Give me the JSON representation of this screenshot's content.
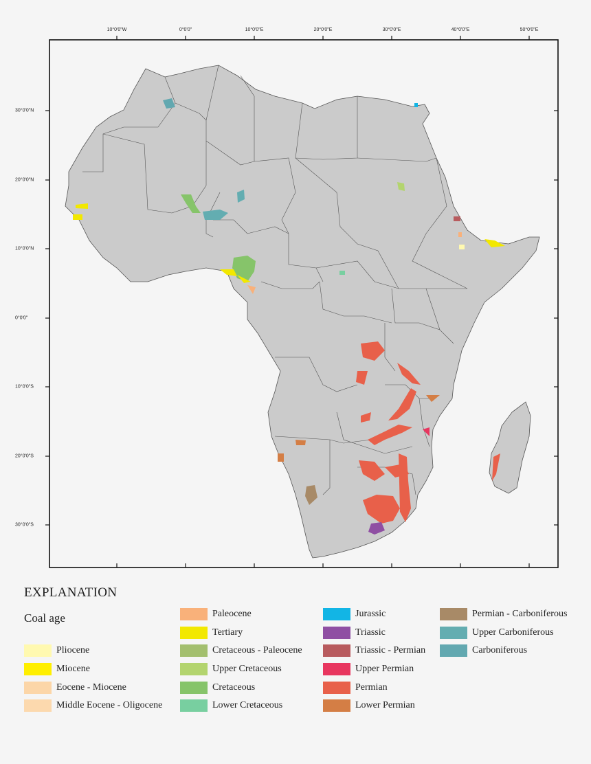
{
  "map": {
    "top_ticks": [
      "10°0'0\"W",
      "0°0'0\"",
      "10°0'0\"E",
      "20°0'0\"E",
      "30°0'0\"E",
      "40°0'0\"E",
      "50°0'0\"E"
    ],
    "left_ticks": [
      "30°0'0\"N",
      "20°0'0\"N",
      "10°0'0\"N",
      "0°0'0\"",
      "10°0'0\"S",
      "20°0'0\"S",
      "30°0'0\"S"
    ],
    "land_color": "#cbcbcb",
    "border_color": "#555555"
  },
  "legend": {
    "title": "EXPLANATION",
    "subtitle": "Coal age",
    "items": [
      {
        "label": "Pliocene",
        "color": "#fff9b0"
      },
      {
        "label": "Miocene",
        "color": "#ffef00"
      },
      {
        "label": "Eocene - Miocene",
        "color": "#fcd6a8"
      },
      {
        "label": "Middle Eocene - Oligocene",
        "color": "#fcd9ae"
      },
      {
        "label": "Paleocene",
        "color": "#f9b17a"
      },
      {
        "label": "Tertiary",
        "color": "#f2e800"
      },
      {
        "label": "Cretaceous - Paleocene",
        "color": "#a3bf6e"
      },
      {
        "label": "Upper Cretaceous",
        "color": "#b3d46e"
      },
      {
        "label": "Cretaceous",
        "color": "#86c46a"
      },
      {
        "label": "Lower Cretaceous",
        "color": "#78cfa0"
      },
      {
        "label": "Jurassic",
        "color": "#12b5e5"
      },
      {
        "label": "Triassic",
        "color": "#8f4fa3"
      },
      {
        "label": "Triassic - Permian",
        "color": "#b85b5e"
      },
      {
        "label": "Upper Permian",
        "color": "#e8365f"
      },
      {
        "label": "Permian",
        "color": "#e8604a"
      },
      {
        "label": "Lower Permian",
        "color": "#d47e45"
      },
      {
        "label": "Permian - Carboniferous",
        "color": "#a88a67"
      },
      {
        "label": "Upper Carboniferous",
        "color": "#63adb1"
      },
      {
        "label": "Carboniferous",
        "color": "#62a8b0"
      }
    ]
  }
}
